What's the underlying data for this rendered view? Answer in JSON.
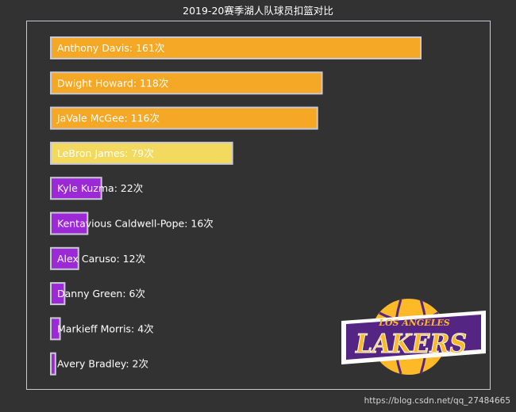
{
  "chart_data": {
    "type": "bar",
    "orientation": "horizontal",
    "title": "2019-20赛季湖人队球员扣篮对比",
    "categories": [
      "Anthony Davis",
      "Dwight Howard",
      "JaVale McGee",
      "LeBron James",
      "Kyle Kuzma",
      "Kentavious Caldwell-Pope",
      "Alex Caruso",
      "Danny Green",
      "Markieff Morris",
      "Avery Bradley"
    ],
    "values": [
      161,
      118,
      116,
      79,
      22,
      16,
      12,
      6,
      4,
      2
    ],
    "data_labels": [
      "Anthony Davis: 161次",
      "Dwight Howard: 118次",
      "JaVale McGee: 116次",
      "LeBron James: 79次",
      "Kyle Kuzma: 22次",
      "Kentavious Caldwell-Pope: 16次",
      "Alex Caruso: 12次",
      "Danny Green: 6次",
      "Markieff Morris: 4次",
      "Avery Bradley: 2次"
    ],
    "bar_colors": [
      "#f4a825",
      "#f4a825",
      "#f4a825",
      "#f3d95d",
      "#9b29d6",
      "#9b29d6",
      "#9b29d6",
      "#9b29d6",
      "#9b29d6",
      "#9b29d6"
    ],
    "bar_border_color": "#c9c9d6",
    "label_color": "#ffffff",
    "xlim": [
      0,
      161
    ],
    "grid": false,
    "legend": false
  },
  "logo": {
    "text_top": "LOS ANGELES",
    "text_main": "LAKERS",
    "colors": {
      "ball": "#fdb927",
      "purple": "#552583"
    }
  },
  "watermark": "https://blog.csdn.net/qq_27484665"
}
